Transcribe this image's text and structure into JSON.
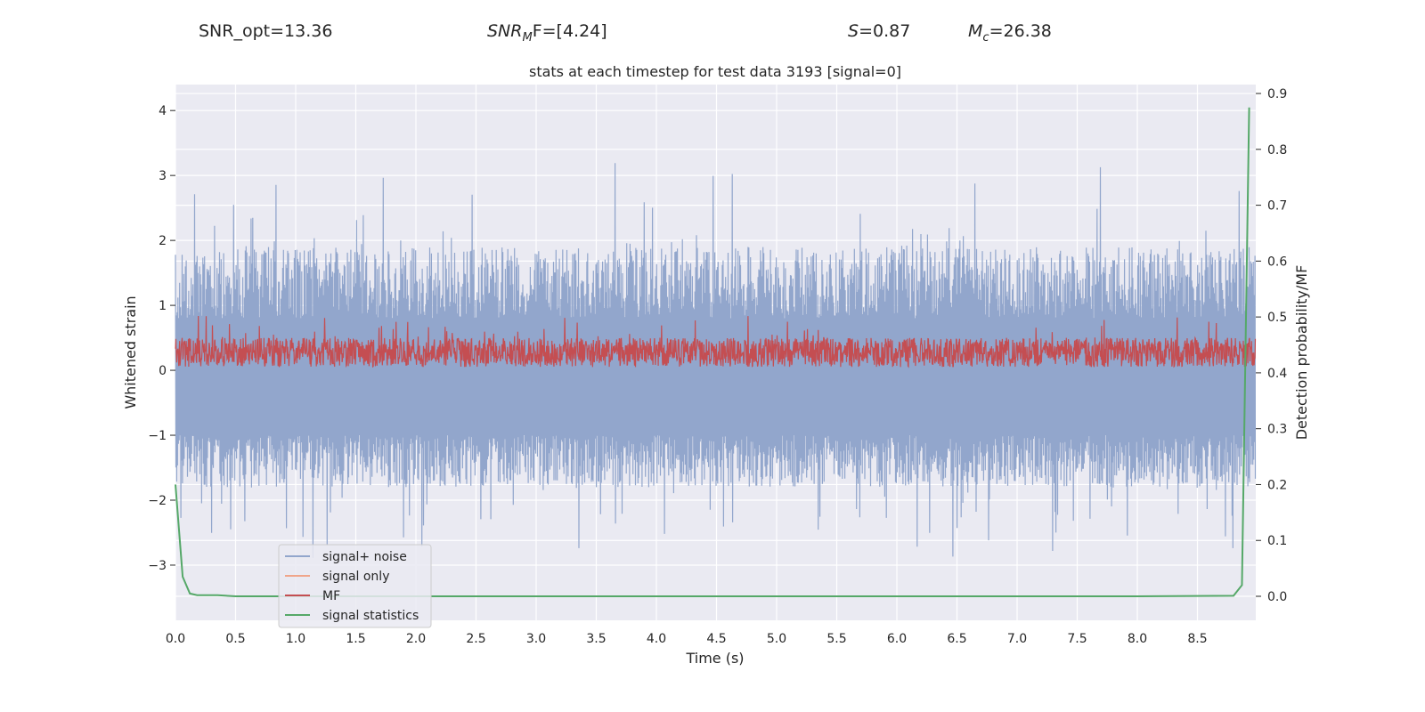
{
  "header": {
    "snr_opt": "SNR_opt=13.36",
    "snr_mf_base": "SNR",
    "snr_mf_sub": "M",
    "snr_mf_rest": "F=[4.24]",
    "s_value": "=0.87",
    "s_label": "S",
    "mc_base": "M",
    "mc_sub": "c",
    "mc_rest": "=26.38"
  },
  "chart_data": {
    "type": "line",
    "title": "stats at each timestep for test data 3193 [signal=0]",
    "xlabel": "Time (s)",
    "ylabel": "Whitened strain",
    "ylabel_right": "Detection probability/MF",
    "xlim": [
      0,
      8.985
    ],
    "ylim": [
      -3.85,
      4.4
    ],
    "ylim_right": [
      -0.043,
      0.916
    ],
    "xticks": [
      "0.0",
      "0.5",
      "1.0",
      "1.5",
      "2.0",
      "2.5",
      "3.0",
      "3.5",
      "4.0",
      "4.5",
      "5.0",
      "5.5",
      "6.0",
      "6.5",
      "7.0",
      "7.5",
      "8.0",
      "8.5"
    ],
    "yticks": [
      "−3",
      "−2",
      "−1",
      "0",
      "1",
      "2",
      "3",
      "4"
    ],
    "yticks_right": [
      "0.0",
      "0.1",
      "0.2",
      "0.3",
      "0.4",
      "0.5",
      "0.6",
      "0.7",
      "0.8",
      "0.9"
    ],
    "grid": true,
    "legend_position": "lower-left",
    "series": [
      {
        "name": "signal+ noise",
        "color": "#92a6cc",
        "axis": "left",
        "description_range": [
          -3.4,
          4.0
        ]
      },
      {
        "name": "signal only",
        "color": "#f0a58a",
        "axis": "left",
        "values": []
      },
      {
        "name": "MF",
        "color": "#c44e52",
        "axis": "left",
        "description_range": [
          0.0,
          0.95
        ]
      },
      {
        "name": "signal statistics",
        "color": "#55a868",
        "axis": "right",
        "x": [
          0.0,
          0.06,
          0.12,
          0.18,
          0.35,
          0.5,
          1.0,
          2.0,
          4.0,
          6.0,
          8.0,
          8.8,
          8.87,
          8.93
        ],
        "y": [
          0.2,
          0.035,
          0.005,
          0.002,
          0.002,
          0.0,
          0.0,
          0.0,
          0.0,
          0.0,
          0.0,
          0.001,
          0.02,
          0.875
        ]
      }
    ]
  }
}
